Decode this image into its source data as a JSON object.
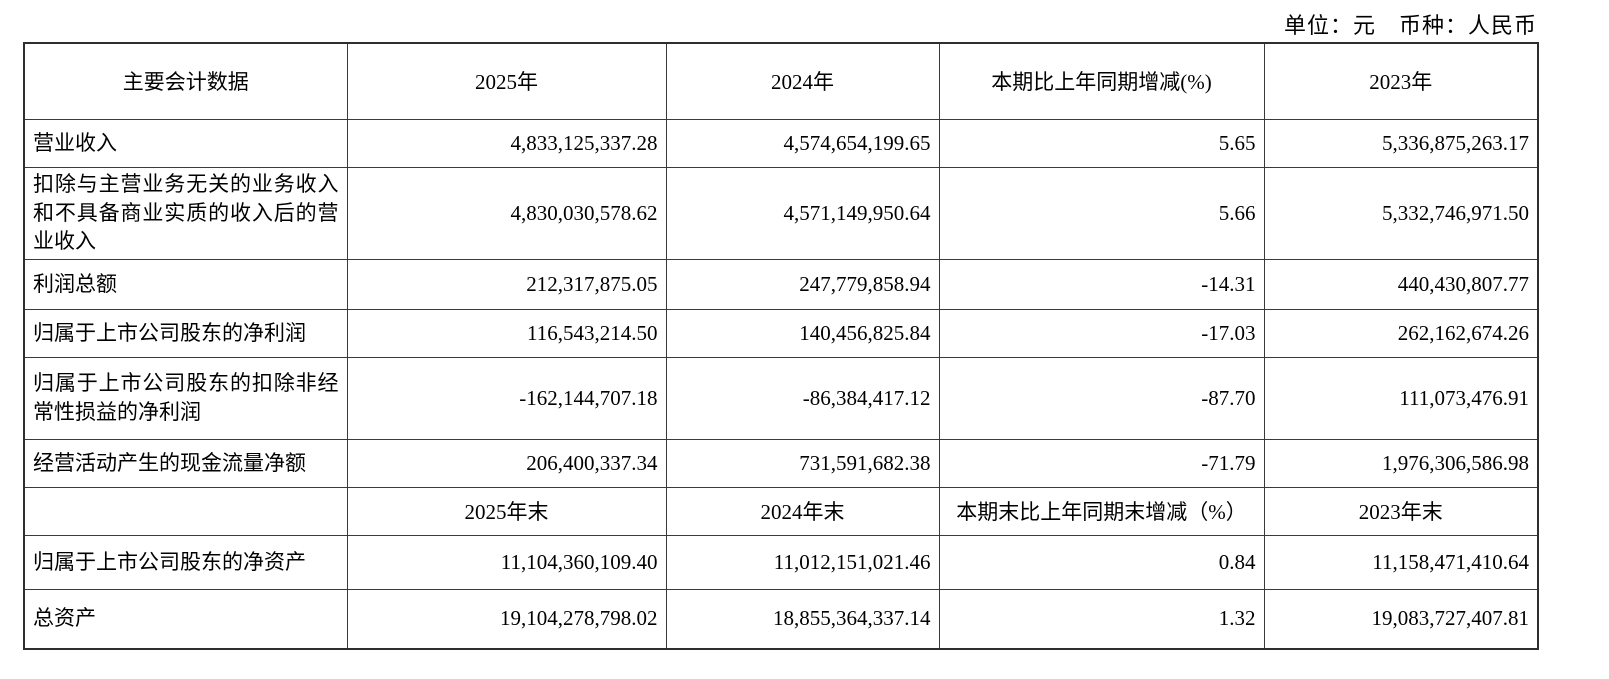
{
  "page": {
    "unit_currency_label": "单位：元　币种：人民币"
  },
  "table": {
    "columns": {
      "metric": "主要会计数据",
      "y2025": "2025年",
      "y2024": "2024年",
      "change": "本期比上年同期增减(%)",
      "y2023": "2023年"
    },
    "rows": [
      {
        "label": "营业收入",
        "v2025": "4,833,125,337.28",
        "v2024": "4,574,654,199.65",
        "change": "5.65",
        "v2023": "5,336,875,263.17"
      },
      {
        "label": "扣除与主营业务无关的业务收入和不具备商业实质的收入后的营业收入",
        "v2025": "4,830,030,578.62",
        "v2024": "4,571,149,950.64",
        "change": "5.66",
        "v2023": "5,332,746,971.50"
      },
      {
        "label": "利润总额",
        "v2025": "212,317,875.05",
        "v2024": "247,779,858.94",
        "change": "-14.31",
        "v2023": "440,430,807.77"
      },
      {
        "label": "归属于上市公司股东的净利润",
        "v2025": "116,543,214.50",
        "v2024": "140,456,825.84",
        "change": "-17.03",
        "v2023": "262,162,674.26"
      },
      {
        "label": "归属于上市公司股东的扣除非经常性损益的净利润",
        "v2025": "-162,144,707.18",
        "v2024": "-86,384,417.12",
        "change": "-87.70",
        "v2023": "111,073,476.91"
      },
      {
        "label": "经营活动产生的现金流量净额",
        "v2025": "206,400,337.34",
        "v2024": "731,591,682.38",
        "change": "-71.79",
        "v2023": "1,976,306,586.98"
      }
    ],
    "period_end_header": {
      "metric": "",
      "y2025": "2025年末",
      "y2024": "2024年末",
      "change": "本期末比上年同期末增减（%）",
      "y2023": "2023年末"
    },
    "period_end_rows": [
      {
        "label": "归属于上市公司股东的净资产",
        "v2025": "11,104,360,109.40",
        "v2024": "11,012,151,021.46",
        "change": "0.84",
        "v2023": "11,158,471,410.64"
      },
      {
        "label": "总资产",
        "v2025": "19,104,278,798.02",
        "v2024": "18,855,364,337.14",
        "change": "1.32",
        "v2023": "19,083,727,407.81"
      }
    ]
  }
}
